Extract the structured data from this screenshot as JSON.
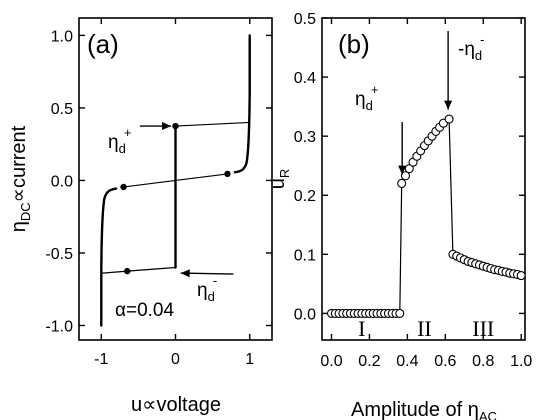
{
  "chart_data": [
    {
      "type": "line",
      "panel_label": "(a)",
      "xlabel": "u∝voltage",
      "ylabel_parts": {
        "pre": "η",
        "sub": "DC",
        "post": "∝current"
      },
      "xlim": [
        -1.3,
        1.3
      ],
      "ylim": [
        -1.1,
        1.12
      ],
      "xticks": [
        -1,
        0,
        1
      ],
      "xtick_labels": [
        "-1",
        "0",
        "1"
      ],
      "yticks": [
        -1.0,
        -0.5,
        0.0,
        0.5,
        1.0
      ],
      "ytick_labels": [
        "-1.0",
        "-0.5",
        "0.0",
        "0.5",
        "1.0"
      ],
      "param_text": "α=0.04",
      "annotations": [
        {
          "name": "eta-d-plus",
          "main": "η",
          "sub": "d",
          "sup": "+",
          "y": 0.375
        },
        {
          "name": "eta-d-minus",
          "main": "η",
          "sub": "d",
          "sup": "-",
          "y": -0.625
        }
      ],
      "series": [
        {
          "role": "left-branch",
          "x": [
            -1.0,
            -1.0,
            -0.995,
            -0.99,
            -0.985,
            -0.978,
            -0.97,
            -0.96,
            -0.95,
            -0.93,
            -0.91,
            -0.88,
            -0.84,
            -0.8
          ],
          "y": [
            -1.0,
            -0.6,
            -0.45,
            -0.35,
            -0.28,
            -0.22,
            -0.17,
            -0.13,
            -0.11,
            -0.09,
            -0.077,
            -0.067,
            -0.06,
            -0.056
          ]
        },
        {
          "role": "center-branch",
          "x": [
            0.0,
            0.0
          ],
          "y": [
            -0.6,
            0.375
          ]
        },
        {
          "role": "right-branch",
          "x": [
            0.8,
            0.84,
            0.88,
            0.91,
            0.93,
            0.95,
            0.96,
            0.97,
            0.978,
            0.985,
            0.99,
            0.995,
            1.0,
            1.0
          ],
          "y": [
            0.056,
            0.06,
            0.067,
            0.077,
            0.09,
            0.11,
            0.13,
            0.17,
            0.22,
            0.28,
            0.35,
            0.45,
            0.6,
            1.0
          ]
        },
        {
          "role": "jump-lines",
          "segments": [
            {
              "x": [
                -1.0,
                -0.65
              ],
              "y": [
                -0.64,
                -0.625
              ]
            },
            {
              "x": [
                -0.65,
                0.0
              ],
              "y": [
                -0.625,
                -0.6
              ]
            },
            {
              "x": [
                -0.7,
                0.0
              ],
              "y": [
                -0.045,
                0.0
              ]
            },
            {
              "x": [
                0.0,
                0.7
              ],
              "y": [
                0.0,
                0.045
              ]
            },
            {
              "x": [
                0.0,
                1.0
              ],
              "y": [
                0.375,
                0.4
              ]
            }
          ]
        },
        {
          "role": "jump-points",
          "x": [
            -0.65,
            -0.7,
            0.7,
            0.0
          ],
          "y": [
            -0.625,
            -0.045,
            0.045,
            0.375
          ]
        }
      ]
    },
    {
      "type": "scatter",
      "panel_label": "(b)",
      "xlabel_parts": {
        "pre": "Amplitude of η",
        "sub": "AC"
      },
      "ylabel_parts": {
        "pre": "u",
        "sub": "R"
      },
      "xlim": [
        -0.05,
        1.02
      ],
      "ylim": [
        -0.045,
        0.5
      ],
      "xticks": [
        0.0,
        0.2,
        0.4,
        0.6,
        0.8,
        1.0
      ],
      "xtick_labels": [
        "0.0",
        "0.2",
        "0.4",
        "0.6",
        "0.8",
        "1.0"
      ],
      "yticks": [
        0.0,
        0.1,
        0.2,
        0.3,
        0.4,
        0.5
      ],
      "ytick_labels": [
        "0.0",
        "0.1",
        "0.2",
        "0.3",
        "0.4",
        "0.5"
      ],
      "regions": [
        {
          "label": "I",
          "x": 0.16
        },
        {
          "label": "II",
          "x": 0.49
        },
        {
          "label": "III",
          "x": 0.8
        }
      ],
      "annotations": [
        {
          "name": "eta-d-plus",
          "main": "η",
          "sub": "d",
          "sup": "+",
          "x": 0.37
        },
        {
          "name": "minus-eta-d-minus",
          "main": "-η",
          "sub": "d",
          "sup": "-",
          "x": 0.62
        }
      ],
      "x": [
        0.0,
        0.02,
        0.04,
        0.06,
        0.08,
        0.1,
        0.12,
        0.14,
        0.16,
        0.18,
        0.2,
        0.22,
        0.24,
        0.26,
        0.28,
        0.3,
        0.32,
        0.34,
        0.36,
        0.37,
        0.39,
        0.41,
        0.43,
        0.45,
        0.47,
        0.49,
        0.51,
        0.53,
        0.55,
        0.57,
        0.59,
        0.62,
        0.64,
        0.66,
        0.68,
        0.7,
        0.72,
        0.74,
        0.76,
        0.78,
        0.8,
        0.82,
        0.84,
        0.86,
        0.88,
        0.9,
        0.92,
        0.94,
        0.96,
        0.98,
        1.0
      ],
      "y": [
        0.0,
        0.0,
        0.0,
        0.0,
        0.0,
        0.0,
        0.0,
        0.0,
        0.0,
        0.0,
        0.0,
        0.0,
        0.0,
        0.0,
        0.0,
        0.0,
        0.0,
        0.0,
        0.0,
        0.22,
        0.233,
        0.245,
        0.256,
        0.266,
        0.275,
        0.284,
        0.292,
        0.3,
        0.308,
        0.315,
        0.322,
        0.329,
        0.1,
        0.097,
        0.094,
        0.091,
        0.088,
        0.086,
        0.084,
        0.082,
        0.08,
        0.078,
        0.076,
        0.074,
        0.073,
        0.071,
        0.07,
        0.068,
        0.067,
        0.066,
        0.064
      ]
    }
  ]
}
